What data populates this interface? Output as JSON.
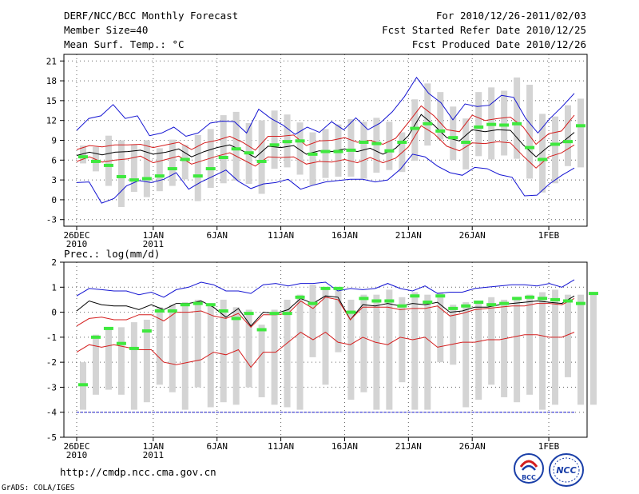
{
  "header": {
    "title": "DERF/NCC/BCC Monthly Forecast",
    "member": "Member Size=40",
    "variable": "Mean Surf. Temp.: °C",
    "for_range": "For 2010/12/26-2011/02/03",
    "started": "Fcst Started Refer Date 2010/12/25",
    "produced": "Fcst Produced Date 2010/12/26"
  },
  "precip_label": "Prec.: log(mm/d)",
  "url": "http://cmdp.ncc.cma.gov.cn",
  "credit": "GrADS: COLA/IGES",
  "logos": {
    "bcc": "BCC",
    "ncc": "NCC"
  },
  "colors": {
    "box": "#d4d4d4",
    "green": "#3ee83e",
    "red": "#d41e1e",
    "blue": "#1414d2",
    "black": "#000000"
  },
  "chart_data": [
    {
      "type": "line",
      "title": "Mean Surf. Temp.: °C",
      "ylim": [
        -4,
        22
      ],
      "yticks": [
        -3,
        0,
        3,
        6,
        9,
        12,
        15,
        18,
        21
      ],
      "xticks": [
        {
          "day": 0,
          "label": "26DEC",
          "label2": "2010"
        },
        {
          "day": 6,
          "label": "1JAN",
          "label2": "2011"
        },
        {
          "day": 11,
          "label": "6JAN",
          "label2": ""
        },
        {
          "day": 16,
          "label": "11JAN",
          "label2": ""
        },
        {
          "day": 21,
          "label": "16JAN",
          "label2": ""
        },
        {
          "day": 26,
          "label": "21JAN",
          "label2": ""
        },
        {
          "day": 31,
          "label": "26JAN",
          "label2": ""
        },
        {
          "day": 37,
          "label": "1FEB",
          "label2": ""
        }
      ],
      "days": 39,
      "series": [
        {
          "name": "ens_max",
          "color": "blue",
          "values": [
            10.5,
            12.3,
            12.7,
            14.4,
            12.3,
            12.7,
            9.7,
            10.1,
            11.0,
            9.6,
            10.1,
            11.6,
            11.9,
            11.8,
            10.1,
            13.7,
            12.3,
            11.3,
            9.9,
            11.0,
            10.2,
            11.8,
            10.6,
            12.4,
            10.6,
            11.6,
            13.3,
            15.6,
            18.5,
            16.1,
            14.7,
            12.1,
            14.5,
            14.1,
            14.3,
            15.8,
            15.5,
            12.3,
            10.1,
            12.3,
            14.1,
            16.1
          ]
        },
        {
          "name": "mean_plus_sd",
          "color": "red",
          "values": [
            7.6,
            8.2,
            8.0,
            8.3,
            8.3,
            8.4,
            7.9,
            8.3,
            8.7,
            7.6,
            8.6,
            9.0,
            9.6,
            8.7,
            7.5,
            9.6,
            9.6,
            9.8,
            8.2,
            8.9,
            9.0,
            9.4,
            8.7,
            9.0,
            8.4,
            9.3,
            11.7,
            14.2,
            12.7,
            10.6,
            10.3,
            12.8,
            12.0,
            12.3,
            12.5,
            11.0,
            8.4,
            10.0,
            10.4,
            12.8
          ]
        },
        {
          "name": "ensemble_mean",
          "color": "black",
          "values": [
            6.7,
            7.2,
            6.8,
            7.2,
            7.3,
            7.5,
            6.9,
            7.2,
            7.7,
            6.5,
            7.3,
            7.9,
            8.3,
            7.4,
            6.4,
            8.1,
            7.9,
            8.2,
            6.9,
            7.4,
            7.3,
            7.7,
            7.3,
            7.8,
            6.9,
            7.8,
            9.7,
            12.9,
            11.3,
            9.4,
            8.9,
            10.6,
            10.3,
            10.6,
            10.5,
            8.3,
            6.5,
            8.1,
            8.6,
            10.2
          ]
        },
        {
          "name": "mean_minus_sd",
          "color": "red",
          "values": [
            5.8,
            6.5,
            5.7,
            6.0,
            6.2,
            6.6,
            5.6,
            6.1,
            6.6,
            5.4,
            6.0,
            6.6,
            7.1,
            6.1,
            5.1,
            6.5,
            6.4,
            6.5,
            5.4,
            5.8,
            5.7,
            6.1,
            5.6,
            6.4,
            5.6,
            6.3,
            8.0,
            11.2,
            10.0,
            8.1,
            7.4,
            8.6,
            8.5,
            8.8,
            8.6,
            6.6,
            4.8,
            6.5,
            7.1,
            8.3
          ]
        },
        {
          "name": "ens_min",
          "color": "blue",
          "values": [
            2.6,
            2.7,
            -0.5,
            0.2,
            2.1,
            2.9,
            2.6,
            3.1,
            4.1,
            1.6,
            2.7,
            3.6,
            4.5,
            2.8,
            1.7,
            2.4,
            2.6,
            3.1,
            1.6,
            2.2,
            2.7,
            2.9,
            3.1,
            3.1,
            2.7,
            3.0,
            4.6,
            6.9,
            6.5,
            5.1,
            4.1,
            3.7,
            4.9,
            4.7,
            3.8,
            3.4,
            0.6,
            0.7,
            2.4,
            3.7,
            4.8
          ]
        }
      ],
      "boxes": [
        [
          5.5,
          8.2
        ],
        [
          4.3,
          8.0
        ],
        [
          2.1,
          9.7
        ],
        [
          -1.1,
          9.0
        ],
        [
          1.2,
          8.4
        ],
        [
          0.4,
          9.0
        ],
        [
          1.3,
          7.8
        ],
        [
          2.1,
          9.1
        ],
        [
          3.1,
          8.3
        ],
        [
          -0.2,
          9.8
        ],
        [
          1.8,
          10.7
        ],
        [
          2.5,
          12.8
        ],
        [
          2.9,
          13.3
        ],
        [
          2.4,
          11.6
        ],
        [
          0.9,
          12.0
        ],
        [
          4.7,
          13.5
        ],
        [
          4.9,
          12.9
        ],
        [
          3.8,
          11.7
        ],
        [
          2.2,
          10.2
        ],
        [
          3.3,
          10.7
        ],
        [
          3.5,
          11.4
        ],
        [
          3.5,
          12.2
        ],
        [
          3.2,
          11.8
        ],
        [
          4.1,
          12.4
        ],
        [
          4.5,
          11.8
        ],
        [
          4.2,
          10.2
        ],
        [
          5.9,
          15.2
        ],
        [
          8.2,
          17.6
        ],
        [
          9.1,
          16.3
        ],
        [
          6.0,
          14.1
        ],
        [
          4.6,
          12.3
        ],
        [
          6.6,
          16.3
        ],
        [
          6.1,
          17.0
        ],
        [
          6.7,
          16.5
        ],
        [
          6.2,
          18.5
        ],
        [
          3.2,
          17.4
        ],
        [
          1.1,
          13.0
        ],
        [
          2.5,
          12.6
        ],
        [
          5.1,
          14.3
        ],
        [
          4.9,
          15.3
        ]
      ],
      "green_marks": [
        6.5,
        5.8,
        5.2,
        3.5,
        3.0,
        3.2,
        3.6,
        4.7,
        6.1,
        3.6,
        4.7,
        6.4,
        7.7,
        7.1,
        5.8,
        8.3,
        8.8,
        8.9,
        6.9,
        7.3,
        7.3,
        7.5,
        8.7,
        8.5,
        7.4,
        8.7,
        10.8,
        11.5,
        10.4,
        9.4,
        8.7,
        11.0,
        11.4,
        11.3,
        11.5,
        7.9,
        6.1,
        8.4,
        8.8,
        11.2
      ]
    },
    {
      "type": "line",
      "title": "Prec.: log(mm/d)",
      "ylim": [
        -5,
        2
      ],
      "yticks": [
        -5,
        -4,
        -3,
        -2,
        -1,
        0,
        1,
        2
      ],
      "xticks": [
        {
          "day": 0,
          "label": "26DEC",
          "label2": "2010"
        },
        {
          "day": 6,
          "label": "1JAN",
          "label2": "2011"
        },
        {
          "day": 11,
          "label": "6JAN",
          "label2": ""
        },
        {
          "day": 16,
          "label": "11JAN",
          "label2": ""
        },
        {
          "day": 21,
          "label": "16JAN",
          "label2": ""
        },
        {
          "day": 26,
          "label": "21JAN",
          "label2": ""
        },
        {
          "day": 31,
          "label": "26JAN",
          "label2": ""
        },
        {
          "day": 37,
          "label": "1FEB",
          "label2": ""
        }
      ],
      "days": 39,
      "baseline": -4,
      "series": [
        {
          "name": "ens_max",
          "color": "blue",
          "values": [
            0.65,
            0.95,
            0.9,
            0.85,
            0.85,
            0.7,
            0.8,
            0.6,
            0.9,
            1.0,
            1.2,
            1.1,
            0.85,
            0.85,
            0.75,
            1.1,
            1.15,
            1.05,
            1.15,
            1.15,
            1.2,
            0.85,
            0.95,
            0.9,
            0.95,
            1.15,
            0.95,
            0.85,
            1.05,
            0.75,
            0.8,
            0.8,
            0.95,
            1.0,
            1.05,
            1.1,
            1.1,
            1.05,
            1.15,
            1.0,
            1.3
          ]
        },
        {
          "name": "mean_plus_sd",
          "color": "black",
          "values": [
            0.05,
            0.45,
            0.3,
            0.25,
            0.25,
            0.1,
            0.3,
            0.1,
            0.35,
            0.35,
            0.45,
            0.2,
            -0.2,
            0.15,
            -0.55,
            0.0,
            -0.05,
            0.1,
            0.55,
            0.35,
            0.65,
            0.6,
            -0.3,
            0.3,
            0.25,
            0.35,
            0.25,
            0.35,
            0.3,
            0.4,
            0.0,
            0.05,
            0.2,
            0.2,
            0.3,
            0.35,
            0.4,
            0.45,
            0.4,
            0.35,
            0.65
          ]
        },
        {
          "name": "mean_minus_sd",
          "color": "red",
          "values": [
            -0.55,
            -0.25,
            -0.2,
            -0.3,
            -0.3,
            -0.1,
            -0.1,
            -0.35,
            0.0,
            0.0,
            0.05,
            -0.15,
            -0.25,
            -0.05,
            -0.6,
            -0.1,
            -0.1,
            -0.05,
            0.45,
            0.15,
            0.6,
            0.5,
            -0.3,
            0.2,
            0.2,
            0.2,
            0.1,
            0.15,
            0.15,
            0.25,
            -0.15,
            -0.05,
            0.1,
            0.15,
            0.2,
            0.25,
            0.25,
            0.35,
            0.35,
            0.3,
            0.55
          ]
        },
        {
          "name": "ens_low",
          "color": "red",
          "values": [
            -1.6,
            -1.3,
            -1.4,
            -1.3,
            -1.4,
            -1.5,
            -1.5,
            -2.0,
            -2.1,
            -2.0,
            -1.9,
            -1.6,
            -1.7,
            -1.5,
            -2.2,
            -1.6,
            -1.6,
            -1.2,
            -0.8,
            -1.1,
            -0.8,
            -1.2,
            -1.3,
            -1.0,
            -1.2,
            -1.3,
            -1.0,
            -1.1,
            -1.0,
            -1.4,
            -1.3,
            -1.2,
            -1.2,
            -1.1,
            -1.1,
            -1.0,
            -0.9,
            -0.9,
            -1.0,
            -1.0,
            -0.8
          ]
        }
      ],
      "boxes": [
        [
          -3.9,
          -2.0
        ],
        [
          -3.3,
          -0.9
        ],
        [
          -3.1,
          -0.7
        ],
        [
          -3.3,
          -0.6
        ],
        [
          -3.9,
          -0.4
        ],
        [
          -3.6,
          -0.3
        ],
        [
          -2.9,
          0.2
        ],
        [
          -3.2,
          0.3
        ],
        [
          -3.9,
          0.4
        ],
        [
          -3.0,
          0.5
        ],
        [
          -3.8,
          0.3
        ],
        [
          -3.6,
          0.5
        ],
        [
          -3.7,
          0.2
        ],
        [
          -3.0,
          0.1
        ],
        [
          -3.4,
          -0.5
        ],
        [
          -3.7,
          0.1
        ],
        [
          -3.8,
          0.5
        ],
        [
          -3.9,
          0.7
        ],
        [
          -1.8,
          1.1
        ],
        [
          -2.9,
          0.9
        ],
        [
          -1.6,
          1.0
        ],
        [
          -3.5,
          0.5
        ],
        [
          -3.2,
          0.7
        ],
        [
          -3.9,
          0.7
        ],
        [
          -3.9,
          0.9
        ],
        [
          -2.8,
          0.6
        ],
        [
          -3.9,
          0.8
        ],
        [
          -3.9,
          0.7
        ],
        [
          -2.0,
          0.8
        ],
        [
          -2.1,
          0.3
        ],
        [
          -3.8,
          0.4
        ],
        [
          -3.5,
          0.4
        ],
        [
          -2.9,
          0.6
        ],
        [
          -3.4,
          0.5
        ],
        [
          -3.6,
          0.6
        ],
        [
          -3.3,
          0.7
        ],
        [
          -3.9,
          0.8
        ],
        [
          -3.7,
          0.9
        ],
        [
          -2.6,
          0.7
        ],
        [
          -3.7,
          0.7
        ],
        [
          -3.7,
          0.8
        ]
      ],
      "green_marks": [
        -2.9,
        -1.0,
        -0.65,
        -1.25,
        -1.45,
        -0.75,
        0.05,
        0.05,
        0.3,
        0.35,
        0.3,
        0.05,
        -0.25,
        -0.05,
        -0.7,
        -0.05,
        -0.05,
        0.6,
        0.35,
        0.95,
        0.95,
        0.0,
        0.55,
        0.45,
        0.45,
        0.25,
        0.65,
        0.4,
        0.65,
        0.15,
        0.25,
        0.4,
        0.3,
        0.35,
        0.55,
        0.6,
        0.55,
        0.5,
        0.45,
        0.35,
        0.75
      ]
    }
  ]
}
